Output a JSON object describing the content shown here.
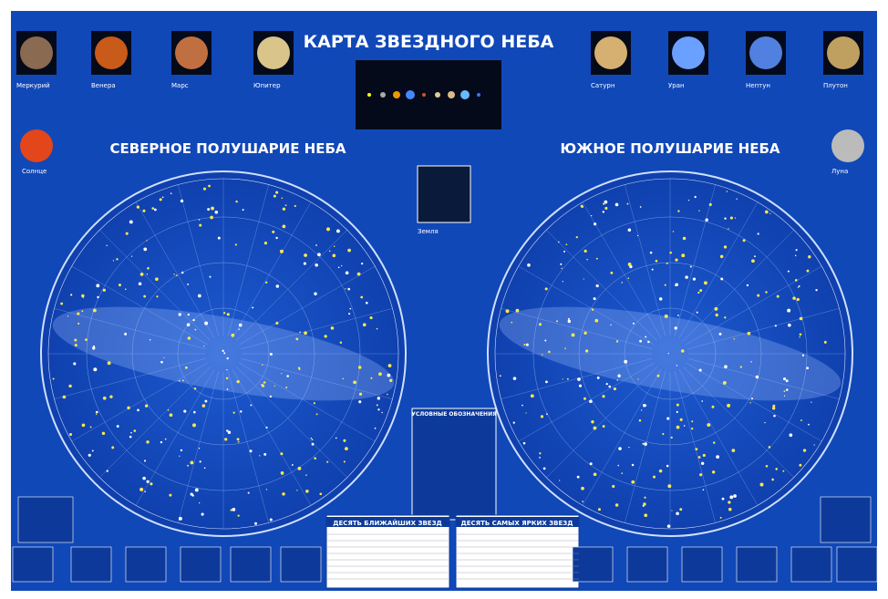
{
  "header": {
    "title": "КАРТА ЗВЕЗДНОГО НЕБА"
  },
  "hemispheres": [
    "СЕВЕРНОЕ ПОЛУШАРИЕ НЕБА",
    "ЮЖНОЕ ПОЛУШАРИЕ НЕБА"
  ],
  "planets_left": [
    "Меркурий",
    "Венера",
    "Марс",
    "Юпитер"
  ],
  "planets_right": [
    "Сатурн",
    "Уран",
    "Нептун",
    "Плутон"
  ],
  "sun": "Солнце",
  "moon": "Луна",
  "earth": "Земля",
  "legend": {
    "title": "УСЛОВНЫЕ ОБОЗНАЧЕНИЯ"
  },
  "tables": [
    "ДЕСЯТЬ БЛИЖАЙШИХ ЗВЕЗД",
    "ДЕСЯТЬ САМЫХ ЯРКИХ ЗВЕЗД"
  ]
}
